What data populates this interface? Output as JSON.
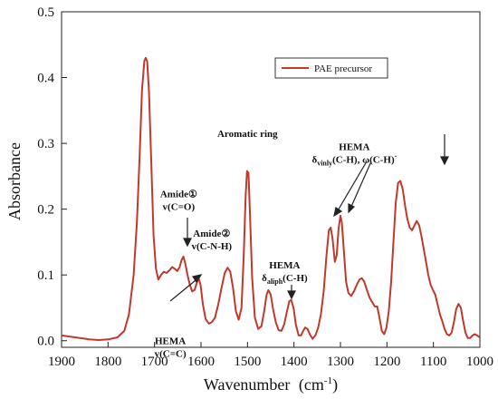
{
  "chart_data": {
    "type": "line",
    "title": "",
    "xlabel": "Wavenumber",
    "xlabel_unit": "(cm",
    "xlabel_unit_sup": "-1",
    "xlabel_unit_close": ")",
    "ylabel": "Absorbance",
    "xlim": [
      1900,
      1000
    ],
    "ylim": [
      -0.01,
      0.5
    ],
    "x_reversed": true,
    "grid": false,
    "legend_position": "top-right",
    "x_ticks": [
      "1900",
      "1800",
      "1700",
      "1600",
      "1500",
      "1400",
      "1300",
      "1200",
      "1100",
      "1000"
    ],
    "y_ticks": [
      "0.0",
      "0.1",
      "0.2",
      "0.3",
      "0.4",
      "0.5"
    ],
    "series": [
      {
        "name": "PAE precursor",
        "color": "#c0392b",
        "points": [
          [
            1900,
            0.008
          ],
          [
            1880,
            0.006
          ],
          [
            1860,
            0.004
          ],
          [
            1840,
            0.002
          ],
          [
            1820,
            0.001
          ],
          [
            1800,
            0.002
          ],
          [
            1780,
            0.005
          ],
          [
            1765,
            0.015
          ],
          [
            1755,
            0.04
          ],
          [
            1745,
            0.1
          ],
          [
            1738,
            0.18
          ],
          [
            1732,
            0.28
          ],
          [
            1727,
            0.38
          ],
          [
            1722,
            0.425
          ],
          [
            1719,
            0.43
          ],
          [
            1716,
            0.425
          ],
          [
            1712,
            0.38
          ],
          [
            1707,
            0.27
          ],
          [
            1702,
            0.16
          ],
          [
            1697,
            0.11
          ],
          [
            1692,
            0.093
          ],
          [
            1686,
            0.1
          ],
          [
            1680,
            0.105
          ],
          [
            1674,
            0.103
          ],
          [
            1668,
            0.107
          ],
          [
            1662,
            0.112
          ],
          [
            1656,
            0.109
          ],
          [
            1651,
            0.106
          ],
          [
            1646,
            0.112
          ],
          [
            1642,
            0.122
          ],
          [
            1638,
            0.128
          ],
          [
            1634,
            0.118
          ],
          [
            1629,
            0.1
          ],
          [
            1624,
            0.085
          ],
          [
            1619,
            0.075
          ],
          [
            1614,
            0.077
          ],
          [
            1609,
            0.088
          ],
          [
            1605,
            0.095
          ],
          [
            1601,
            0.085
          ],
          [
            1596,
            0.055
          ],
          [
            1590,
            0.033
          ],
          [
            1583,
            0.026
          ],
          [
            1577,
            0.028
          ],
          [
            1570,
            0.035
          ],
          [
            1563,
            0.055
          ],
          [
            1556,
            0.08
          ],
          [
            1549,
            0.103
          ],
          [
            1543,
            0.111
          ],
          [
            1537,
            0.105
          ],
          [
            1531,
            0.08
          ],
          [
            1525,
            0.045
          ],
          [
            1519,
            0.032
          ],
          [
            1513,
            0.05
          ],
          [
            1508,
            0.13
          ],
          [
            1504,
            0.22
          ],
          [
            1501,
            0.258
          ],
          [
            1498,
            0.255
          ],
          [
            1495,
            0.2
          ],
          [
            1490,
            0.095
          ],
          [
            1484,
            0.035
          ],
          [
            1477,
            0.018
          ],
          [
            1470,
            0.022
          ],
          [
            1464,
            0.045
          ],
          [
            1459,
            0.07
          ],
          [
            1455,
            0.077
          ],
          [
            1450,
            0.07
          ],
          [
            1445,
            0.048
          ],
          [
            1439,
            0.028
          ],
          [
            1433,
            0.016
          ],
          [
            1427,
            0.015
          ],
          [
            1421,
            0.025
          ],
          [
            1415,
            0.045
          ],
          [
            1410,
            0.06
          ],
          [
            1406,
            0.062
          ],
          [
            1401,
            0.05
          ],
          [
            1396,
            0.025
          ],
          [
            1390,
            0.008
          ],
          [
            1385,
            0.008
          ],
          [
            1380,
            0.015
          ],
          [
            1376,
            0.02
          ],
          [
            1371,
            0.018
          ],
          [
            1366,
            0.01
          ],
          [
            1360,
            0.003
          ],
          [
            1354,
            0.008
          ],
          [
            1348,
            0.02
          ],
          [
            1342,
            0.04
          ],
          [
            1336,
            0.075
          ],
          [
            1330,
            0.13
          ],
          [
            1325,
            0.168
          ],
          [
            1321,
            0.172
          ],
          [
            1317,
            0.155
          ],
          [
            1312,
            0.12
          ],
          [
            1308,
            0.13
          ],
          [
            1304,
            0.17
          ],
          [
            1300,
            0.19
          ],
          [
            1297,
            0.18
          ],
          [
            1293,
            0.14
          ],
          [
            1288,
            0.09
          ],
          [
            1283,
            0.073
          ],
          [
            1277,
            0.068
          ],
          [
            1271,
            0.075
          ],
          [
            1265,
            0.085
          ],
          [
            1259,
            0.093
          ],
          [
            1254,
            0.095
          ],
          [
            1249,
            0.09
          ],
          [
            1243,
            0.077
          ],
          [
            1237,
            0.065
          ],
          [
            1231,
            0.058
          ],
          [
            1226,
            0.052
          ],
          [
            1221,
            0.052
          ],
          [
            1216,
            0.035
          ],
          [
            1211,
            0.015
          ],
          [
            1206,
            0.01
          ],
          [
            1201,
            0.02
          ],
          [
            1196,
            0.045
          ],
          [
            1191,
            0.09
          ],
          [
            1186,
            0.15
          ],
          [
            1181,
            0.21
          ],
          [
            1176,
            0.24
          ],
          [
            1171,
            0.243
          ],
          [
            1166,
            0.23
          ],
          [
            1161,
            0.205
          ],
          [
            1156,
            0.185
          ],
          [
            1151,
            0.172
          ],
          [
            1146,
            0.168
          ],
          [
            1141,
            0.175
          ],
          [
            1136,
            0.182
          ],
          [
            1131,
            0.176
          ],
          [
            1126,
            0.16
          ],
          [
            1121,
            0.14
          ],
          [
            1116,
            0.12
          ],
          [
            1111,
            0.1
          ],
          [
            1106,
            0.085
          ],
          [
            1101,
            0.077
          ],
          [
            1096,
            0.07
          ],
          [
            1091,
            0.055
          ],
          [
            1086,
            0.04
          ],
          [
            1081,
            0.03
          ],
          [
            1076,
            0.018
          ],
          [
            1071,
            0.01
          ],
          [
            1066,
            0.008
          ],
          [
            1061,
            0.012
          ],
          [
            1056,
            0.028
          ],
          [
            1051,
            0.048
          ],
          [
            1046,
            0.056
          ],
          [
            1041,
            0.05
          ],
          [
            1036,
            0.03
          ],
          [
            1031,
            0.012
          ],
          [
            1026,
            0.004
          ],
          [
            1021,
            0.004
          ],
          [
            1016,
            0.008
          ],
          [
            1011,
            0.01
          ],
          [
            1006,
            0.008
          ],
          [
            1000,
            0.005
          ]
        ]
      }
    ],
    "annotations": [
      {
        "lines": [
          {
            "text": "Aromatic ring"
          }
        ],
        "x": 1500,
        "y": 0.31
      },
      {
        "lines": [
          {
            "text": "Amide①"
          },
          {
            "text": "v(C=O)"
          }
        ],
        "x": 1648,
        "y": 0.218
      },
      {
        "lines": [
          {
            "text": "Amide②"
          },
          {
            "text": "v(C-N-H)"
          }
        ],
        "x": 1577,
        "y": 0.158
      },
      {
        "lines": [
          {
            "text": "HEMA"
          },
          {
            "text": "v(C=C)"
          }
        ],
        "x": 1666,
        "y": -0.005
      },
      {
        "lines": [
          {
            "text": "HEMA"
          },
          {
            "text": "δ",
            "sub": "aliph",
            "tail": "(C-H)"
          }
        ],
        "x": 1420,
        "y": 0.11
      },
      {
        "lines": [
          {
            "text": "HEMA"
          },
          {
            "text": "δ",
            "sub": "vinly",
            "tail": "(C-H), ω(C-H)",
            "sup": "-"
          }
        ],
        "x": 1270,
        "y": 0.29
      }
    ]
  }
}
